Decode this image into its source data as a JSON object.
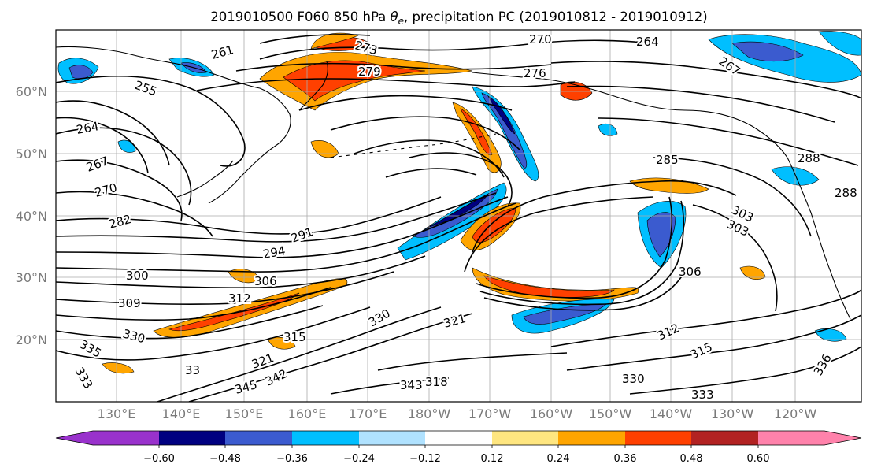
{
  "title": "2019010500 F060 850 hPa θe, precipitation PC (2019010812 - 2019010912)",
  "title_parts": {
    "prefix": "2019010500 F060 850 hPa ",
    "symbol": "θ",
    "subscript": "e",
    "suffix": ", precipitation PC (2019010812 - 2019010912)"
  },
  "lat_labels": [
    "60°N",
    "50°N",
    "40°N",
    "30°N",
    "20°N"
  ],
  "lon_labels": [
    "130°E",
    "140°E",
    "150°E",
    "160°E",
    "170°E",
    "180°W",
    "170°W",
    "160°W",
    "150°W",
    "140°W",
    "130°W",
    "120°W"
  ],
  "colorbar": {
    "ticks": [
      "−0.60",
      "−0.48",
      "−0.36",
      "−0.24",
      "−0.12",
      "0.12",
      "0.24",
      "0.36",
      "0.48",
      "0.60"
    ],
    "colors": [
      "#9932cc",
      "#000080",
      "#3b5bcf",
      "#00bfff",
      "#b0e2ff",
      "#ffffff",
      "#ffe680",
      "#ffa500",
      "#ff4000",
      "#b22222",
      "#ff82ab"
    ]
  },
  "contour_labels": [
    "255",
    "264",
    "267",
    "270",
    "282",
    "300",
    "309",
    "330",
    "335",
    "333",
    "33",
    "261",
    "273",
    "279",
    "276",
    "270",
    "264",
    "267",
    "291",
    "294",
    "306",
    "312",
    "285",
    "288",
    "303",
    "315",
    "321",
    "330",
    "345",
    "342",
    "343",
    "312",
    "315",
    "336",
    "333",
    "306",
    "318",
    "330",
    "321",
    "303",
    "288"
  ]
}
